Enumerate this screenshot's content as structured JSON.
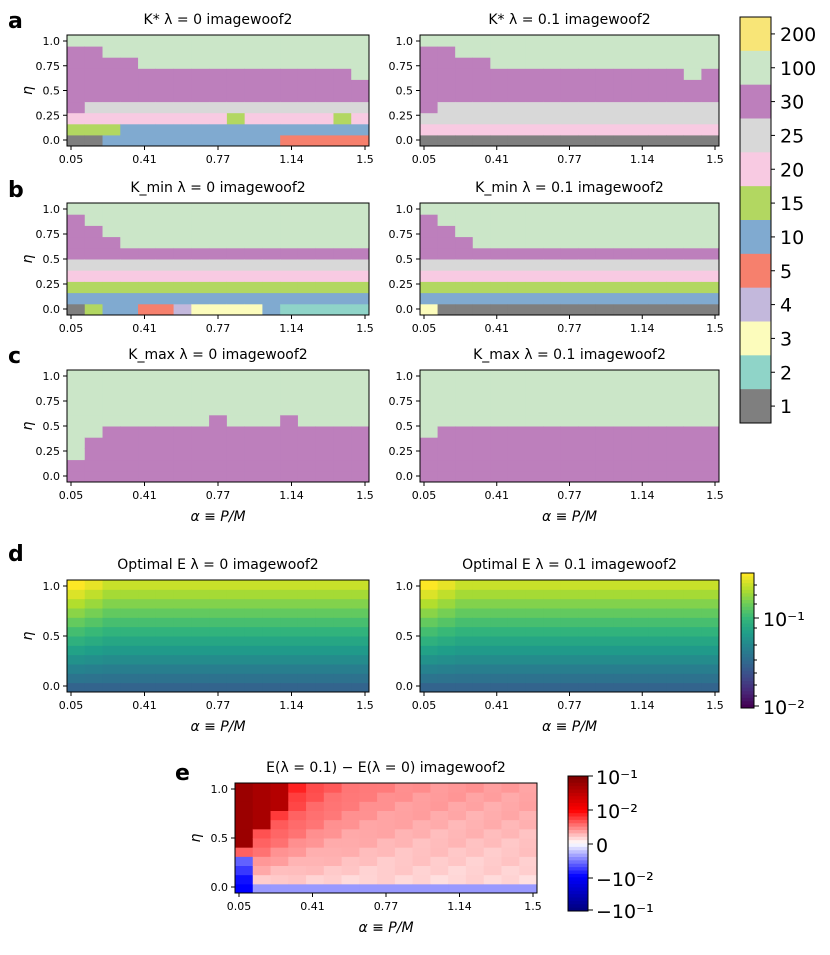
{
  "figure": {
    "panel_letters": [
      "a",
      "b",
      "c",
      "d",
      "e"
    ]
  },
  "chart_data": [
    {
      "type": "heatmap",
      "panel": "a",
      "title": "K* λ=0 imagewoof2",
      "xlabel": "",
      "ylabel": "η",
      "x_ticks": [
        "0.05",
        "0.41",
        "0.77",
        "1.14",
        "1.5"
      ],
      "y_ticks": [
        "0.0",
        "0.25",
        "0.5",
        "0.75",
        "1.0"
      ],
      "cols": 17,
      "boundaries": {
        "b100": [
          9,
          9,
          8,
          8,
          7,
          7,
          7,
          7,
          7,
          7,
          7,
          7,
          7,
          7,
          7,
          7,
          6
        ],
        "b30": [
          3,
          4,
          4,
          4,
          4,
          4,
          4,
          4,
          4,
          4,
          4,
          4,
          4,
          4,
          4,
          4,
          4
        ],
        "b25": [
          3,
          3,
          3,
          3,
          3,
          3,
          3,
          3,
          3,
          3,
          3,
          3,
          3,
          3,
          3,
          3,
          3
        ],
        "b20": [
          2,
          2,
          2,
          2,
          2,
          2,
          2,
          2,
          2,
          3,
          2,
          2,
          2,
          2,
          2,
          3,
          2
        ],
        "b15": [
          1,
          1,
          1,
          2,
          2,
          2,
          2,
          2,
          2,
          2,
          2,
          2,
          2,
          2,
          2,
          2,
          2
        ],
        "b10": [
          0,
          0,
          0,
          0,
          0,
          1,
          1,
          1,
          1,
          1,
          1,
          1,
          1,
          1,
          1,
          1,
          1
        ],
        "b5": [
          0,
          0,
          0,
          0,
          0,
          0,
          0,
          0,
          0,
          0,
          0,
          0,
          1,
          1,
          1,
          1,
          1
        ]
      }
    },
    {
      "type": "heatmap",
      "panel": "a",
      "title": "K* λ=0.1 imagewoof2",
      "xlabel": "",
      "ylabel": "",
      "x_ticks": [
        "0.05",
        "0.41",
        "0.77",
        "1.14",
        "1.5"
      ],
      "y_ticks": [
        "0.0",
        "0.25",
        "0.5",
        "0.75",
        "1.0"
      ],
      "cols": 17,
      "boundaries": {
        "b100": [
          9,
          9,
          8,
          8,
          7,
          7,
          7,
          7,
          7,
          7,
          7,
          7,
          7,
          7,
          7,
          6,
          7
        ],
        "b30": [
          3,
          4,
          4,
          4,
          4,
          4,
          4,
          4,
          4,
          4,
          4,
          4,
          4,
          4,
          4,
          4,
          4
        ],
        "b25": [
          2,
          2,
          2,
          2,
          2,
          2,
          2,
          2,
          2,
          2,
          2,
          2,
          2,
          2,
          2,
          2,
          2
        ],
        "b20": [
          1,
          1,
          1,
          1,
          1,
          1,
          1,
          1,
          1,
          1,
          1,
          1,
          1,
          1,
          1,
          1,
          1
        ],
        "b15": [
          1,
          1,
          1,
          1,
          1,
          1,
          1,
          1,
          1,
          1,
          1,
          1,
          1,
          1,
          1,
          1,
          1
        ],
        "b10": [
          1,
          1,
          1,
          1,
          1,
          1,
          1,
          1,
          1,
          1,
          1,
          1,
          1,
          1,
          1,
          1,
          1
        ],
        "b5": [
          1,
          1,
          1,
          1,
          1,
          1,
          1,
          1,
          1,
          1,
          1,
          1,
          1,
          1,
          1,
          1,
          1
        ]
      }
    },
    {
      "type": "heatmap",
      "panel": "b",
      "title": "K_min λ=0 imagewoof2",
      "xlabel": "",
      "ylabel": "η",
      "x_ticks": [
        "0.05",
        "0.41",
        "0.77",
        "1.14",
        "1.5"
      ],
      "y_ticks": [
        "0.0",
        "0.25",
        "0.5",
        "0.75",
        "1.0"
      ],
      "cols": 17,
      "boundaries": {
        "b100": [
          9,
          8,
          7,
          6,
          6,
          6,
          6,
          6,
          6,
          6,
          6,
          6,
          6,
          6,
          6,
          6,
          6
        ],
        "b30": [
          5,
          5,
          5,
          5,
          5,
          5,
          5,
          5,
          5,
          5,
          5,
          5,
          5,
          5,
          5,
          5,
          5
        ],
        "b25": [
          4,
          4,
          4,
          4,
          4,
          4,
          4,
          4,
          4,
          4,
          4,
          4,
          4,
          4,
          4,
          4,
          4
        ],
        "b20": [
          3,
          3,
          3,
          3,
          3,
          3,
          3,
          3,
          3,
          3,
          3,
          3,
          3,
          3,
          3,
          3,
          3
        ],
        "b15": [
          2,
          2,
          2,
          2,
          2,
          2,
          2,
          2,
          2,
          2,
          2,
          2,
          2,
          2,
          2,
          2,
          2
        ],
        "b10": [
          1,
          1,
          1,
          1,
          1,
          1,
          1,
          1,
          1,
          1,
          1,
          1,
          1,
          1,
          1,
          1,
          1
        ],
        "b5": [
          0,
          0,
          0,
          0,
          0,
          0,
          0,
          0,
          0,
          0,
          0,
          0,
          0,
          0,
          0,
          0,
          0
        ]
      }
    },
    {
      "type": "heatmap",
      "panel": "b",
      "title": "K_min λ=0.1 imagewoof2",
      "xlabel": "",
      "ylabel": "",
      "x_ticks": [
        "0.05",
        "0.41",
        "0.77",
        "1.14",
        "1.5"
      ],
      "y_ticks": [
        "0.0",
        "0.25",
        "0.5",
        "0.75",
        "1.0"
      ],
      "cols": 17,
      "boundaries": {
        "b100": [
          9,
          8,
          7,
          6,
          6,
          6,
          6,
          6,
          6,
          6,
          6,
          6,
          6,
          6,
          6,
          6,
          6
        ],
        "b30": [
          5,
          5,
          5,
          5,
          5,
          5,
          5,
          5,
          5,
          5,
          5,
          5,
          5,
          5,
          5,
          5,
          5
        ],
        "b25": [
          4,
          4,
          4,
          4,
          4,
          4,
          4,
          4,
          4,
          4,
          4,
          4,
          4,
          4,
          4,
          4,
          4
        ],
        "b20": [
          3,
          3,
          3,
          3,
          3,
          3,
          3,
          3,
          3,
          3,
          3,
          3,
          3,
          3,
          3,
          3,
          3
        ],
        "b15": [
          2,
          2,
          2,
          2,
          2,
          2,
          2,
          2,
          2,
          2,
          2,
          2,
          2,
          2,
          2,
          2,
          2
        ],
        "b10": [
          1,
          1,
          1,
          1,
          1,
          1,
          1,
          1,
          1,
          1,
          1,
          1,
          1,
          1,
          1,
          1,
          1
        ],
        "b5": [
          0,
          0,
          0,
          0,
          0,
          0,
          0,
          0,
          0,
          0,
          0,
          0,
          0,
          0,
          0,
          0,
          0
        ]
      }
    },
    {
      "type": "heatmap",
      "panel": "c",
      "title": "K_max λ=0 imagewoof2",
      "xlabel": "α ≡ P/M",
      "ylabel": "η",
      "x_ticks": [
        "0.05",
        "0.41",
        "0.77",
        "1.14",
        "1.5"
      ],
      "y_ticks": [
        "0.0",
        "0.25",
        "0.5",
        "0.75",
        "1.0"
      ],
      "cols": 17,
      "b100": [
        2,
        4,
        5,
        5,
        5,
        5,
        5,
        5,
        6,
        5,
        5,
        5,
        6,
        5,
        5,
        5,
        5
      ]
    },
    {
      "type": "heatmap",
      "panel": "c",
      "title": "K_max λ=0.1 imagewoof2",
      "xlabel": "α ≡ P/M",
      "ylabel": "",
      "x_ticks": [
        "0.05",
        "0.41",
        "0.77",
        "1.14",
        "1.5"
      ],
      "y_ticks": [
        "0.0",
        "0.25",
        "0.5",
        "0.75",
        "1.0"
      ],
      "cols": 17,
      "b100": [
        4,
        5,
        5,
        5,
        5,
        5,
        5,
        5,
        5,
        5,
        5,
        5,
        5,
        5,
        5,
        5,
        5
      ]
    },
    {
      "type": "heatmap",
      "panel": "d",
      "title": "Optimal E λ=0 imagewoof2",
      "xlabel": "α ≡ P/M",
      "ylabel": "η",
      "x_ticks": [
        "0.05",
        "0.41",
        "0.77",
        "1.14",
        "1.5"
      ],
      "y_ticks": [
        "0.0",
        "0.5",
        "1.0"
      ],
      "cols": 17,
      "rows": 12,
      "colorscale": "viridis-log",
      "zlim": [
        0.01,
        0.2
      ]
    },
    {
      "type": "heatmap",
      "panel": "d",
      "title": "Optimal E λ=0.1 imagewoof2",
      "xlabel": "α ≡ P/M",
      "ylabel": "",
      "x_ticks": [
        "0.05",
        "0.41",
        "0.77",
        "1.14",
        "1.5"
      ],
      "y_ticks": [
        "0.0",
        "0.5",
        "1.0"
      ],
      "cols": 17,
      "rows": 12,
      "colorscale": "viridis-log",
      "zlim": [
        0.01,
        0.2
      ]
    },
    {
      "type": "heatmap",
      "panel": "e",
      "title": "E(λ=0.1) − E(λ=0) imagewoof2",
      "xlabel": "α ≡ P/M",
      "ylabel": "η",
      "x_ticks": [
        "0.05",
        "0.41",
        "0.77",
        "1.14",
        "1.5"
      ],
      "y_ticks": [
        "0.0",
        "0.5",
        "1.0"
      ],
      "cols": 17,
      "rows": 12,
      "colorscale": "seismic-symlog"
    }
  ],
  "colorbars": {
    "categorical": {
      "labels": [
        "200",
        "100",
        "30",
        "25",
        "20",
        "15",
        "10",
        "5",
        "4",
        "3",
        "2",
        "1"
      ],
      "colors": [
        "#f8e577",
        "#cbe6c8",
        "#bd7fbc",
        "#d8d8d8",
        "#f8cae2",
        "#b2d761",
        "#80aad0",
        "#f6806d",
        "#c3b8dc",
        "#fcfcbc",
        "#8fd4c8",
        "#7f7f7f"
      ]
    },
    "viridis": {
      "labels": [
        "10⁻¹",
        "10⁻²"
      ]
    },
    "diverging": {
      "labels": [
        "10⁻¹",
        "10⁻²",
        "0",
        "−10⁻²",
        "−10⁻¹"
      ]
    }
  },
  "labels": {
    "yaxis": "η",
    "xaxis": "α ≡ P/M",
    "a_left": "K* λ = 0 imagewoof2",
    "a_right": "K* λ = 0.1 imagewoof2",
    "b_left": "K_min λ = 0 imagewoof2",
    "b_right": "K_min λ = 0.1 imagewoof2",
    "c_left": "K_max λ = 0 imagewoof2",
    "c_right": "K_max λ = 0.1 imagewoof2",
    "d_left": "Optimal E λ = 0 imagewoof2",
    "d_right": "Optimal E λ = 0.1 imagewoof2",
    "e": "E(λ = 0.1) − E(λ = 0) imagewoof2"
  }
}
